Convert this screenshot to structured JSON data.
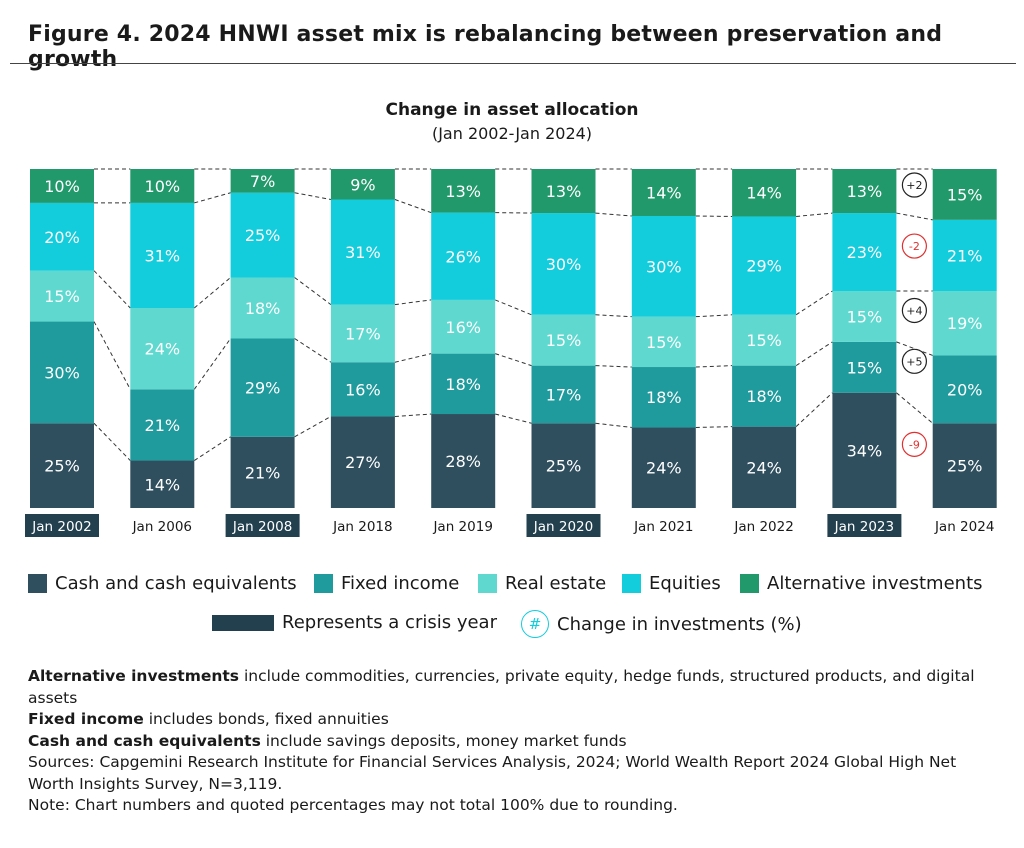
{
  "figure_title": "Figure 4. 2024 HNWI asset mix is rebalancing between preservation and growth",
  "chart_data": {
    "type": "bar",
    "stacked": true,
    "normalized_percent": true,
    "title": "Change in asset allocation",
    "subtitle": "(Jan 2002-Jan 2024)",
    "categories": [
      "Jan 2002",
      "Jan 2006",
      "Jan 2008",
      "Jan 2018",
      "Jan 2019",
      "Jan 2020",
      "Jan 2021",
      "Jan 2022",
      "Jan 2023",
      "Jan 2024"
    ],
    "crisis_years": [
      "Jan 2002",
      "Jan 2008",
      "Jan 2020",
      "Jan 2023"
    ],
    "series": [
      {
        "name": "Cash and cash equivalents",
        "color": "#2f4f5f",
        "values": [
          25,
          14,
          21,
          27,
          28,
          25,
          24,
          24,
          34,
          25
        ]
      },
      {
        "name": "Fixed income",
        "color": "#1f9a9d",
        "values": [
          30,
          21,
          29,
          16,
          18,
          17,
          18,
          18,
          15,
          20
        ]
      },
      {
        "name": "Real estate",
        "color": "#5fd9cf",
        "values": [
          15,
          24,
          18,
          17,
          16,
          15,
          15,
          15,
          15,
          19
        ]
      },
      {
        "name": "Equities",
        "color": "#13ccdc",
        "values": [
          20,
          31,
          25,
          31,
          26,
          30,
          30,
          29,
          23,
          21
        ]
      },
      {
        "name": "Alternative investments",
        "color": "#22996b",
        "values": [
          10,
          10,
          7,
          9,
          13,
          13,
          14,
          14,
          13,
          15
        ]
      }
    ],
    "changes_2023_to_2024": [
      {
        "series": "Alternative investments",
        "label": "+2"
      },
      {
        "series": "Equities",
        "label": "-2"
      },
      {
        "series": "Real estate",
        "label": "+4"
      },
      {
        "series": "Fixed income",
        "label": "+5"
      },
      {
        "series": "Cash and cash equivalents",
        "label": "-9"
      }
    ],
    "change_colors": {
      "positive": "#222222",
      "negative": "#e03030"
    },
    "legend_position": "bottom"
  },
  "legend": {
    "crisis_label": "Represents a crisis year",
    "crisis_color": "#23404f",
    "change_symbol": "#",
    "change_label": "Change in investments (%)"
  },
  "notes": {
    "alt_term": "Alternative investments",
    "alt_text": " include commodities, currencies, private equity, hedge funds, structured products, and digital assets",
    "fixed_term": "Fixed income",
    "fixed_text": " includes bonds, fixed annuities",
    "cash_term": "Cash and cash equivalents",
    "cash_text": " include savings deposits, money market funds",
    "sources": "Sources: Capgemini Research Institute for Financial Services Analysis, 2024; World Wealth Report 2024 Global High Net Worth Insights Survey, N=3,119.",
    "note": "Note: Chart numbers and quoted percentages may not total 100% due to rounding."
  }
}
